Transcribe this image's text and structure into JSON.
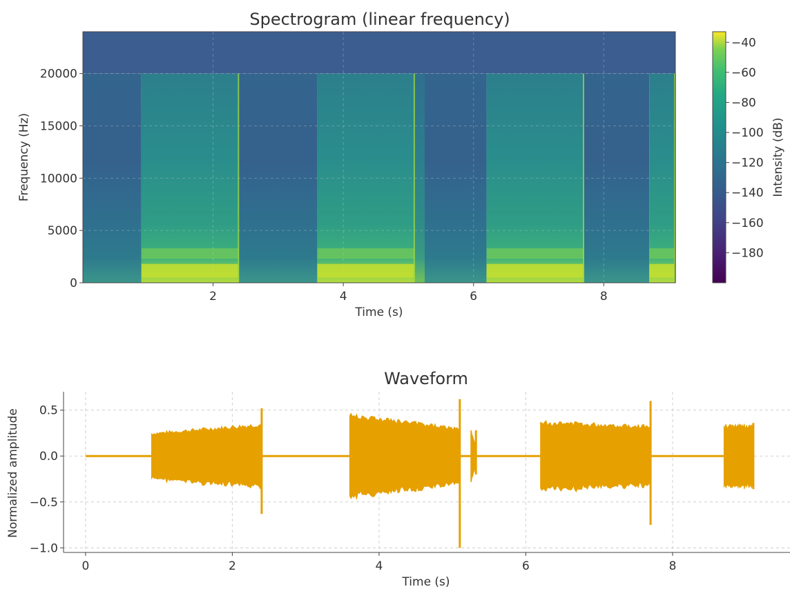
{
  "chart_data": [
    {
      "type": "heatmap",
      "title": "Spectrogram (linear frequency)",
      "xlabel": "Time (s)",
      "ylabel": "Frequency (Hz)",
      "xlim": [
        0,
        9.1
      ],
      "ylim": [
        0,
        24000
      ],
      "xticks": [
        2,
        4,
        6,
        8
      ],
      "yticks": [
        0,
        5000,
        10000,
        15000,
        20000
      ],
      "grid": true,
      "colorbar": {
        "label": "Intensity (dB)",
        "colormap": "viridis",
        "range": [
          -200,
          -33
        ],
        "ticks": [
          -40,
          -60,
          -80,
          -100,
          -120,
          -140,
          -160,
          -180
        ]
      },
      "bandlimit_hz": 20000,
      "segments": [
        {
          "start": 0.0,
          "end": 0.9,
          "level": "low"
        },
        {
          "start": 0.9,
          "end": 2.4,
          "level": "high"
        },
        {
          "start": 2.4,
          "end": 3.6,
          "level": "low"
        },
        {
          "start": 3.6,
          "end": 5.1,
          "level": "high"
        },
        {
          "start": 5.1,
          "end": 5.25,
          "level": "medium"
        },
        {
          "start": 5.25,
          "end": 6.2,
          "level": "low"
        },
        {
          "start": 6.2,
          "end": 7.7,
          "level": "high"
        },
        {
          "start": 7.7,
          "end": 8.7,
          "level": "low"
        },
        {
          "start": 8.7,
          "end": 9.1,
          "level": "high"
        }
      ]
    },
    {
      "type": "line",
      "title": "Waveform",
      "xlabel": "Time (s)",
      "ylabel": "Normalized amplitude",
      "xlim": [
        -0.3,
        9.6
      ],
      "ylim": [
        -1.05,
        0.7
      ],
      "xticks": [
        0,
        2,
        4,
        6,
        8
      ],
      "yticks": [
        -1.0,
        -0.5,
        0.0,
        0.5
      ],
      "grid": true,
      "color": "#E6A000",
      "bursts": [
        {
          "start": 0.9,
          "end": 2.4,
          "amp_start": 0.25,
          "amp_end": 0.35,
          "spike_pos": 0.52,
          "spike_neg": -0.63
        },
        {
          "start": 3.6,
          "end": 5.1,
          "amp_start": 0.45,
          "amp_end": 0.3,
          "spike_pos": 0.62,
          "spike_neg": -1.0
        },
        {
          "start": 5.25,
          "end": 5.32,
          "amp_start": 0.28,
          "amp_end": 0.1,
          "spike_pos": 0.28,
          "spike_neg": -0.2
        },
        {
          "start": 6.2,
          "end": 7.7,
          "amp_start": 0.37,
          "amp_end": 0.33,
          "spike_pos": 0.6,
          "spike_neg": -0.75
        },
        {
          "start": 8.7,
          "end": 9.1,
          "amp_start": 0.33,
          "amp_end": 0.33,
          "spike_pos": 0.36,
          "spike_neg": -0.36
        }
      ]
    }
  ]
}
